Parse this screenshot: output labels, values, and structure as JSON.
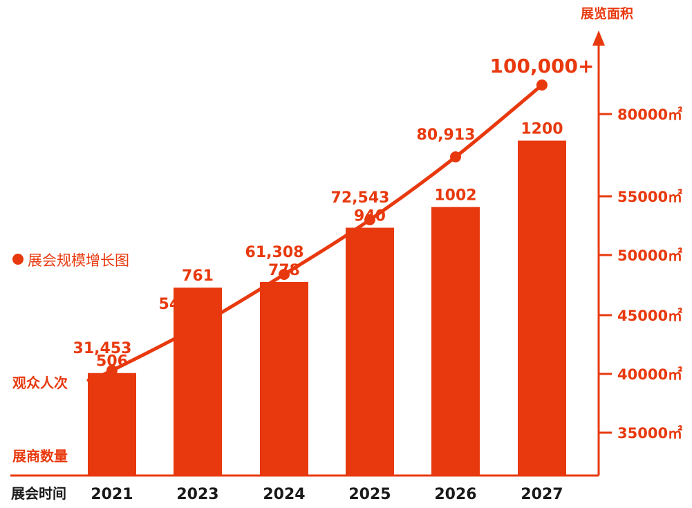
{
  "chart_data": {
    "type": "bar",
    "categories": [
      "2021",
      "2023",
      "2024",
      "2025",
      "2026",
      "2027"
    ],
    "series": [
      {
        "name": "展商数量",
        "type": "bar",
        "values": [
          506,
          761,
          778,
          940,
          1002,
          1200
        ]
      },
      {
        "name": "观众人次",
        "type": "line",
        "values": [
          31453,
          54506,
          61308,
          72543,
          80913,
          100000
        ]
      }
    ],
    "bar_labels": [
      "506",
      "761",
      "778",
      "940",
      "1002",
      "1200"
    ],
    "line_labels": [
      "31,453",
      "54,506",
      "61,308",
      "72,543",
      "80,913",
      "100,000+"
    ],
    "y_right": {
      "label": "展览面积",
      "ticks": [
        "35000㎡",
        "40000㎡",
        "45000㎡",
        "50000㎡",
        "55000㎡",
        "80000㎡"
      ]
    },
    "legend": {
      "label": "展会规模增长图",
      "placement": "left"
    },
    "left_labels": {
      "line": "观众人次",
      "bars": "展商数量",
      "xaxis": "展会时间"
    },
    "grid": false,
    "colors": {
      "bar": "#e8390e",
      "line": "#e8390e",
      "text": "#e8390e",
      "axis_text": "#1a1a1a"
    }
  }
}
